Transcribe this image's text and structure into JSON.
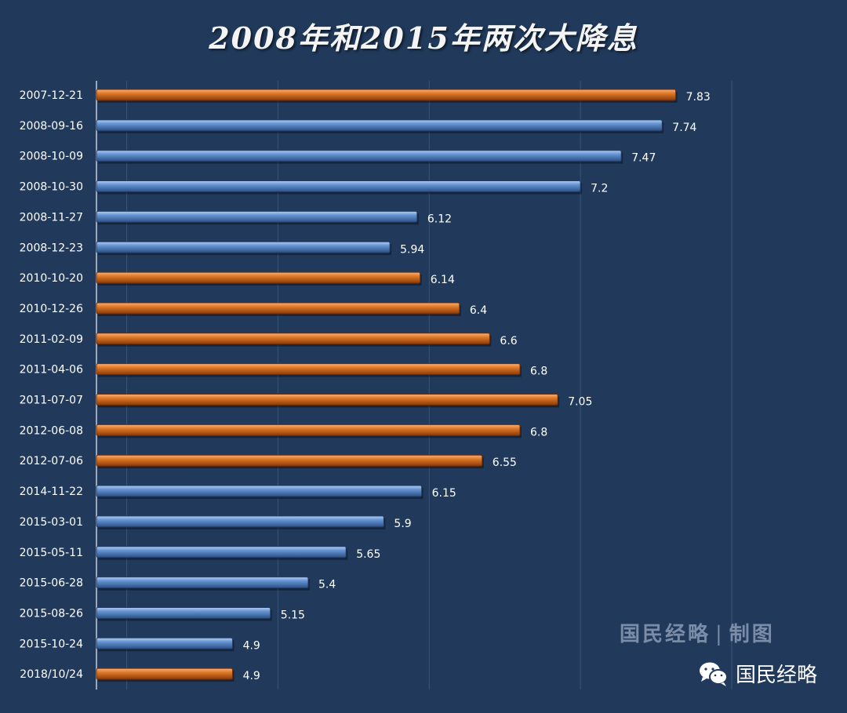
{
  "title": "2008年和2015年两次大降息",
  "chart_data": {
    "type": "bar",
    "orientation": "horizontal",
    "title": "2008年和2015年两次大降息",
    "categories": [
      "2007-12-21",
      "2008-09-16",
      "2008-10-09",
      "2008-10-30",
      "2008-11-27",
      "2008-12-23",
      "2010-10-20",
      "2010-12-26",
      "2011-02-09",
      "2011-04-06",
      "2011-07-07",
      "2012-06-08",
      "2012-07-06",
      "2014-11-22",
      "2015-03-01",
      "2015-05-11",
      "2015-06-28",
      "2015-08-26",
      "2015-10-24",
      "2018/10/24"
    ],
    "values": [
      7.83,
      7.74,
      7.47,
      7.2,
      6.12,
      5.94,
      6.14,
      6.4,
      6.6,
      6.8,
      7.05,
      6.8,
      6.55,
      6.15,
      5.9,
      5.65,
      5.4,
      5.15,
      4.9,
      4.9
    ],
    "value_labels": [
      "7.83",
      "7.74",
      "7.47",
      "7.2",
      "6.12",
      "5.94",
      "6.14",
      "6.4",
      "6.6",
      "6.8",
      "7.05",
      "6.8",
      "6.55",
      "6.15",
      "5.9",
      "5.65",
      "5.4",
      "5.15",
      "4.9",
      "4.9"
    ],
    "bar_color_groups": [
      "orange",
      "blue",
      "blue",
      "blue",
      "blue",
      "blue",
      "orange",
      "orange",
      "orange",
      "orange",
      "orange",
      "orange",
      "orange",
      "blue",
      "blue",
      "blue",
      "blue",
      "blue",
      "blue",
      "orange"
    ],
    "xlim": [
      4.0,
      8.9
    ],
    "xlabel": "",
    "ylabel": "",
    "grid": true
  },
  "colors": {
    "background": "#213a5c",
    "orange": "#d96d1f",
    "blue": "#5b88c6",
    "gridline": "#3a5478"
  },
  "watermark": {
    "text": "国民经略",
    "separator": "|",
    "suffix": "制图"
  },
  "brand": {
    "icon": "wechat-icon",
    "name": "国民经略"
  }
}
